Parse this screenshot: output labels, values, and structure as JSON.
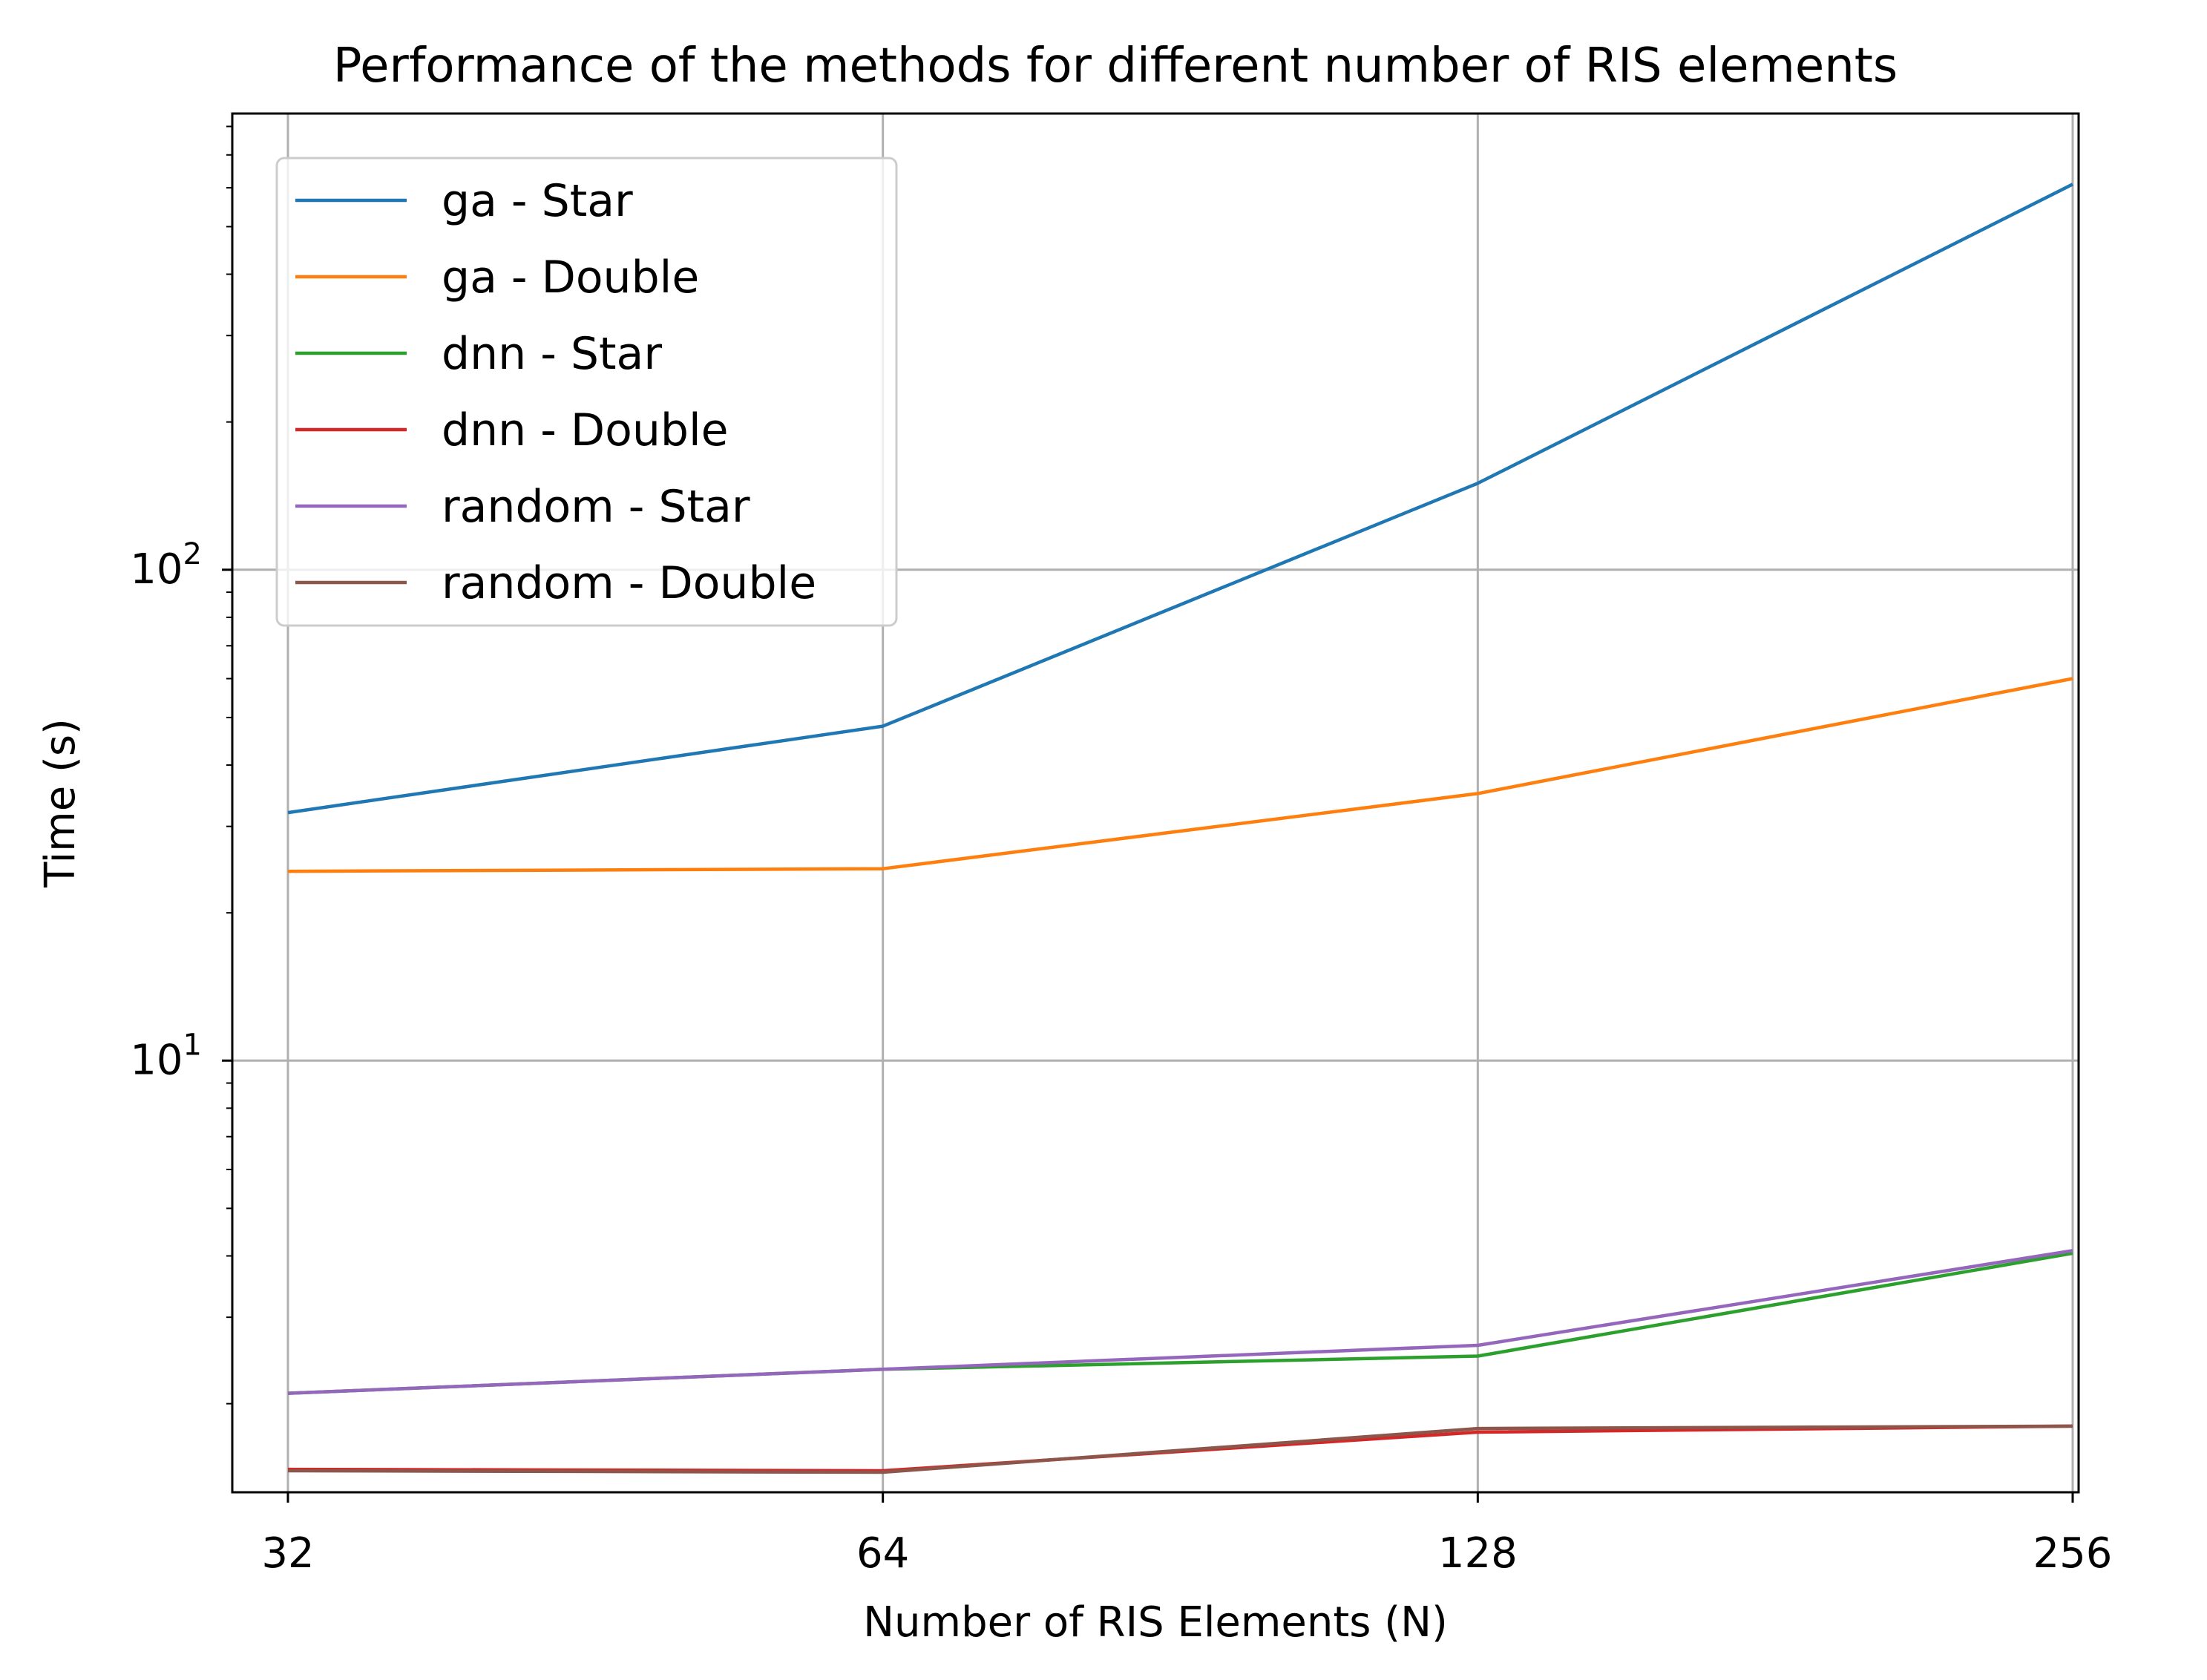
{
  "chart_data": {
    "type": "line",
    "title": "Performance of the methods for different number of RIS elements",
    "xlabel": "Number of RIS Elements (N)",
    "ylabel": "Time (s)",
    "x": [
      32,
      64,
      128,
      256
    ],
    "x_scale": "log2",
    "x_tick_labels": [
      "32",
      "64",
      "128",
      "256"
    ],
    "y_scale": "log",
    "ylim": [
      1.32,
      850
    ],
    "y_tick_labels": [
      {
        "base": "10",
        "exp": "1"
      },
      {
        "base": "10",
        "exp": "2"
      }
    ],
    "grid": true,
    "legend_position": "upper left",
    "series": [
      {
        "name": "ga - Star",
        "color": "#1f77b4",
        "values": [
          32,
          48,
          150,
          610
        ]
      },
      {
        "name": "ga - Double",
        "color": "#ff7f0e",
        "values": [
          24.3,
          24.6,
          35,
          60
        ]
      },
      {
        "name": "dnn - Star",
        "color": "#2ca02c",
        "values": [
          2.1,
          2.35,
          2.5,
          4.05
        ]
      },
      {
        "name": "dnn - Double",
        "color": "#d62728",
        "values": [
          1.47,
          1.46,
          1.75,
          1.8
        ]
      },
      {
        "name": "random - Star",
        "color": "#9467bd",
        "values": [
          2.1,
          2.35,
          2.63,
          4.1
        ]
      },
      {
        "name": "random - Double",
        "color": "#8c564b",
        "values": [
          1.46,
          1.45,
          1.78,
          1.8
        ]
      }
    ]
  }
}
